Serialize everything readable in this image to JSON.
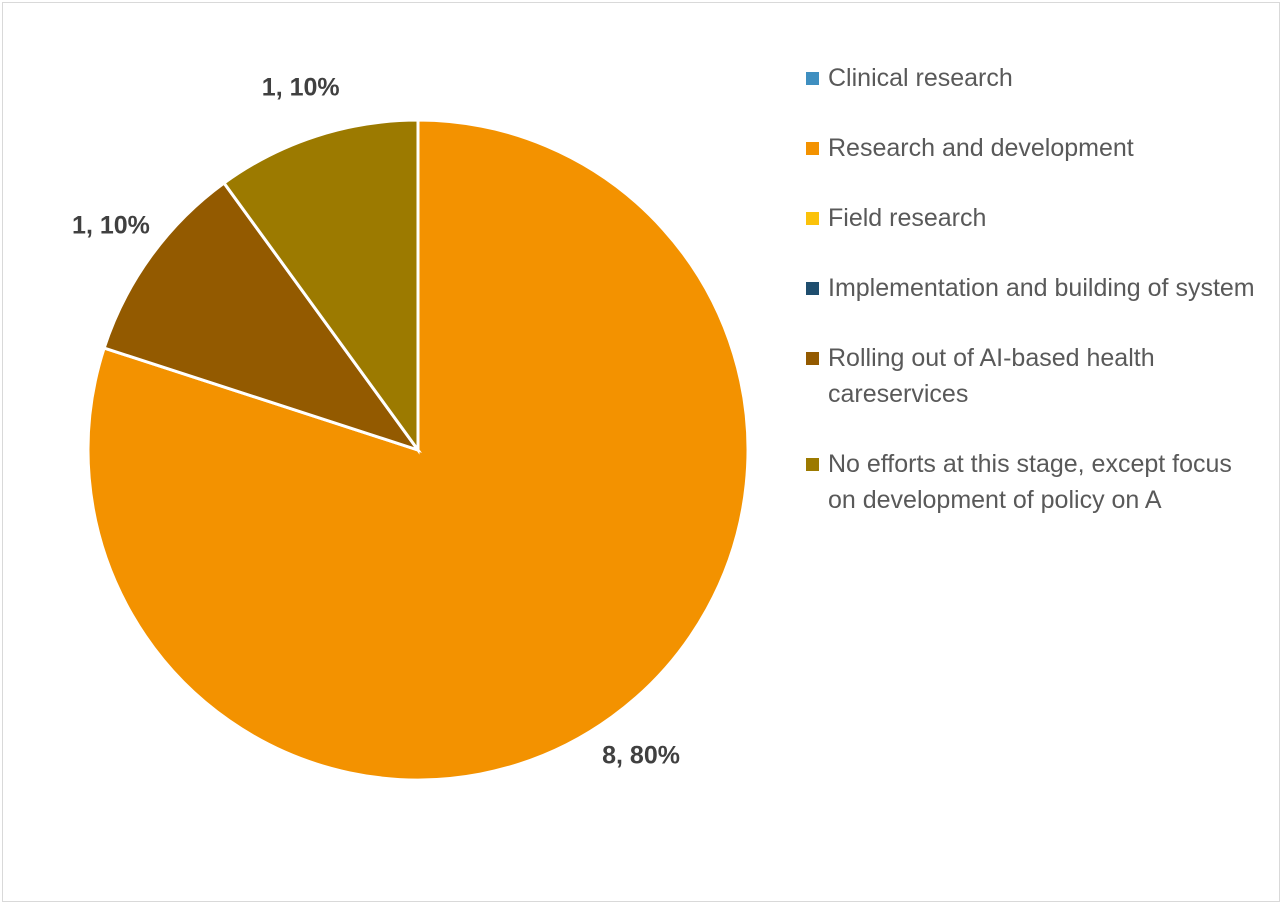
{
  "chart_data": {
    "type": "pie",
    "categories": [
      "Clinical research",
      "Research and development",
      "Field research",
      "Implementation and building of system",
      "Rolling out of AI-based health careservices",
      "No efforts at this stage, except focus on development of policy on A"
    ],
    "values": [
      0,
      8,
      0,
      0,
      1,
      1
    ],
    "value_labels": [
      null,
      "8, 80%",
      null,
      null,
      "1, 10%",
      "1, 10%"
    ],
    "colors": [
      "#3f8fc0",
      "#f39200",
      "#fbc20a",
      "#1f4e6e",
      "#935a00",
      "#9c7a00"
    ],
    "legend": "right"
  }
}
